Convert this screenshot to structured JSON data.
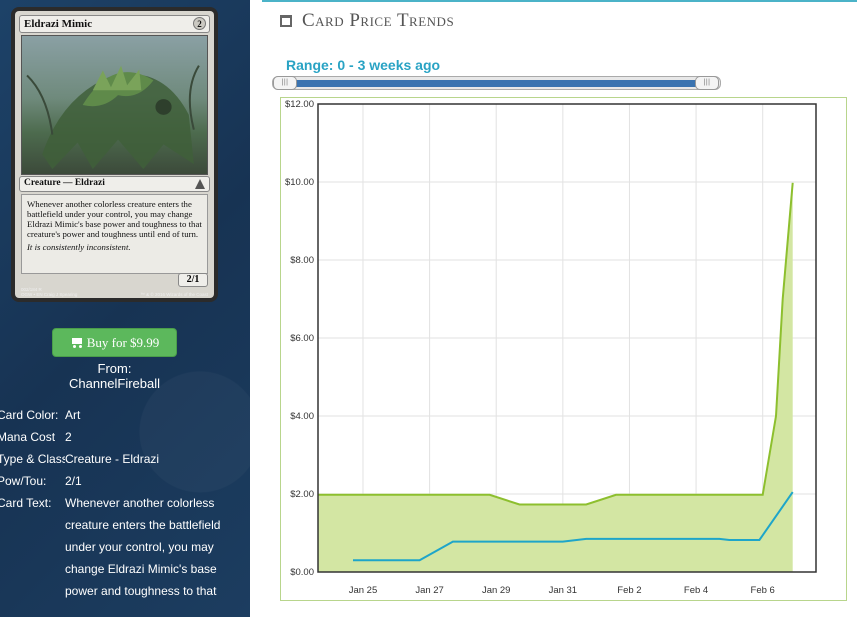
{
  "card": {
    "name": "Eldrazi Mimic",
    "mana_symbol": "2",
    "type_line": "Creature — Eldrazi",
    "rules_text": "Whenever another colorless creature enters the battlefield under your control, you may change Eldrazi Mimic's base power and toughness to that creature's power and toughness until end of turn.",
    "flavor_text": "It is consistently inconsistent.",
    "power_toughness": "2/1",
    "footer_left": "002/184 R",
    "footer_left2": "OGW • EN  Craig J Spearing",
    "footer_right": "™ & © 2016 Wizards of the Coast"
  },
  "buy": {
    "label": "Buy for $9.99",
    "from": "From: ChannelFireball"
  },
  "info": [
    {
      "label": "Card Color:",
      "value": "Art"
    },
    {
      "label": "Mana Cost",
      "value": "2"
    },
    {
      "label": "Type & Class:",
      "value": "Creature - Eldrazi"
    },
    {
      "label": "Pow/Tou:",
      "value": "2/1"
    },
    {
      "label": "Card Text:",
      "value": "Whenever another colorless creature enters the battlefield under your control, you may change Eldrazi Mimic's base power and toughness to that"
    }
  ],
  "header": {
    "title": "Card Price Trends",
    "range_label": "Range: 0 - 3 weeks ago",
    "slider_handle_glyph": "|||"
  },
  "colors": {
    "accent": "#29a3c4",
    "green_series": "#8dbf2e",
    "green_fill": "#d3e6a3",
    "blue_series": "#1ea5c9",
    "buy_button": "#5cb85c"
  },
  "chart_data": {
    "type": "line",
    "title": "",
    "xlabel": "",
    "ylabel": "",
    "ylim": [
      0,
      12
    ],
    "y_ticks": [
      "$0.00",
      "$2.00",
      "$4.00",
      "$6.00",
      "$8.00",
      "$10.00",
      "$12.00"
    ],
    "x_ticks": [
      "Jan 25",
      "Jan 27",
      "Jan 29",
      "Jan 31",
      "Feb 2",
      "Feb 4",
      "Feb 6"
    ],
    "x_tick_days": [
      0,
      2,
      4,
      6,
      8,
      10,
      12
    ],
    "grid": true,
    "series": [
      {
        "style": "area",
        "points": [
          [
            -1.35,
            1.98
          ],
          [
            2.8,
            1.98
          ],
          [
            3.8,
            1.98
          ],
          [
            4.7,
            1.73
          ],
          [
            6.7,
            1.73
          ],
          [
            7.6,
            1.98
          ],
          [
            12.0,
            1.98
          ],
          [
            12.4,
            4.0
          ],
          [
            12.6,
            7.0
          ],
          [
            12.9,
            9.98
          ]
        ]
      },
      {
        "style": "line",
        "points": [
          [
            -0.3,
            0.3
          ],
          [
            1.7,
            0.3
          ],
          [
            2.7,
            0.78
          ],
          [
            6.0,
            0.78
          ],
          [
            6.7,
            0.85
          ],
          [
            10.7,
            0.85
          ],
          [
            11.0,
            0.82
          ],
          [
            11.9,
            0.82
          ],
          [
            12.9,
            2.05
          ]
        ]
      }
    ]
  }
}
